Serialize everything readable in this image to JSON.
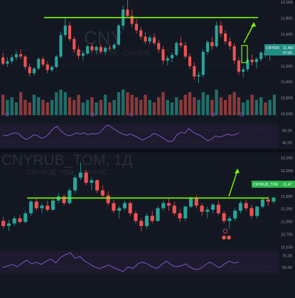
{
  "colors": {
    "background": "#131722",
    "separator": "#0b0e16",
    "grid": "#1c2130",
    "candle_up": "#26a69a",
    "candle_down": "#ef5350",
    "vol_up": "#1f6f68",
    "vol_down": "#8a3a3a",
    "level_line": "#7cff00",
    "rsi_line": "#7e57c2",
    "rsi_band": "#221d33",
    "watermark": "#2a2e39",
    "axis_text": "#9598a1",
    "badge_upper": "#1f8f83",
    "badge_lower": "#2bb24c"
  },
  "chart_data": [
    {
      "type": "candlestick",
      "symbol_watermark": "CNY",
      "symbol_subline": "CNY/RUB_TOM · CNY/РУБ",
      "yticks": [
        "12,000",
        "11,800",
        "11,600",
        "11,400",
        "11,200",
        "11,000",
        "10,800",
        "10,600"
      ],
      "ylim": [
        10.52,
        12.02
      ],
      "price_badge": {
        "label": "CNY000",
        "value": "11,460",
        "time": "07:05"
      },
      "level": 11.8,
      "candles": [
        [
          11.3,
          11.36,
          11.2,
          11.22
        ],
        [
          11.22,
          11.3,
          11.18,
          11.25
        ],
        [
          11.25,
          11.33,
          11.22,
          11.3
        ],
        [
          11.3,
          11.38,
          11.26,
          11.34
        ],
        [
          11.34,
          11.4,
          11.28,
          11.31
        ],
        [
          11.31,
          11.33,
          11.15,
          11.18
        ],
        [
          11.18,
          11.22,
          11.06,
          11.1
        ],
        [
          11.1,
          11.18,
          11.07,
          11.16
        ],
        [
          11.16,
          11.3,
          11.14,
          11.28
        ],
        [
          11.28,
          11.31,
          11.18,
          11.21
        ],
        [
          11.21,
          11.25,
          11.1,
          11.14
        ],
        [
          11.14,
          11.2,
          11.11,
          11.18
        ],
        [
          11.18,
          11.33,
          11.16,
          11.31
        ],
        [
          11.31,
          11.62,
          11.29,
          11.58
        ],
        [
          11.58,
          11.8,
          11.55,
          11.7
        ],
        [
          11.7,
          11.74,
          11.5,
          11.53
        ],
        [
          11.53,
          11.56,
          11.36,
          11.4
        ],
        [
          11.4,
          11.45,
          11.28,
          11.32
        ],
        [
          11.32,
          11.38,
          11.26,
          11.35
        ],
        [
          11.35,
          11.46,
          11.33,
          11.44
        ],
        [
          11.44,
          11.48,
          11.36,
          11.39
        ],
        [
          11.39,
          11.45,
          11.35,
          11.43
        ],
        [
          11.43,
          11.47,
          11.34,
          11.37
        ],
        [
          11.37,
          11.44,
          11.33,
          11.42
        ],
        [
          11.42,
          11.46,
          11.38,
          11.41
        ],
        [
          11.41,
          11.48,
          11.39,
          11.46
        ],
        [
          11.46,
          11.72,
          11.44,
          11.7
        ],
        [
          11.7,
          11.95,
          11.65,
          11.9
        ],
        [
          11.9,
          12.05,
          11.8,
          11.82
        ],
        [
          11.82,
          11.9,
          11.68,
          11.72
        ],
        [
          11.72,
          11.78,
          11.6,
          11.64
        ],
        [
          11.64,
          11.68,
          11.52,
          11.56
        ],
        [
          11.56,
          11.62,
          11.47,
          11.5
        ],
        [
          11.5,
          11.58,
          11.46,
          11.55
        ],
        [
          11.55,
          11.6,
          11.45,
          11.48
        ],
        [
          11.48,
          11.52,
          11.36,
          11.4
        ],
        [
          11.4,
          11.44,
          11.22,
          11.26
        ],
        [
          11.26,
          11.32,
          11.2,
          11.29
        ],
        [
          11.29,
          11.36,
          11.24,
          11.33
        ],
        [
          11.33,
          11.5,
          11.31,
          11.48
        ],
        [
          11.48,
          11.56,
          11.42,
          11.45
        ],
        [
          11.45,
          11.49,
          11.28,
          11.31
        ],
        [
          11.31,
          11.35,
          11.15,
          11.19
        ],
        [
          11.19,
          11.24,
          11.02,
          11.06
        ],
        [
          11.06,
          11.12,
          10.98,
          11.08
        ],
        [
          11.08,
          11.4,
          11.05,
          11.37
        ],
        [
          11.37,
          11.52,
          11.33,
          11.49
        ],
        [
          11.49,
          11.56,
          11.4,
          11.44
        ],
        [
          11.44,
          11.75,
          11.42,
          11.7
        ],
        [
          11.7,
          11.76,
          11.56,
          11.6
        ],
        [
          11.6,
          11.64,
          11.46,
          11.5
        ],
        [
          11.5,
          11.55,
          11.4,
          11.44
        ],
        [
          11.44,
          11.48,
          11.22,
          11.26
        ],
        [
          11.26,
          11.3,
          11.08,
          11.12
        ],
        [
          11.12,
          11.18,
          11.05,
          11.15
        ],
        [
          11.15,
          11.3,
          11.12,
          11.27
        ],
        [
          11.27,
          11.34,
          11.2,
          11.24
        ],
        [
          11.24,
          11.3,
          11.16,
          11.28
        ],
        [
          11.28,
          11.38,
          11.25,
          11.36
        ],
        [
          11.36,
          11.44,
          11.3,
          11.33
        ],
        [
          11.33,
          11.38,
          11.26,
          11.35
        ],
        [
          11.35,
          11.48,
          11.33,
          11.46
        ]
      ],
      "volumes": [
        0.8,
        0.6,
        0.7,
        0.5,
        0.9,
        0.6,
        0.5,
        0.8,
        0.7,
        0.6,
        0.5,
        0.6,
        0.9,
        1.0,
        0.9,
        0.7,
        0.6,
        0.8,
        0.5,
        0.6,
        0.7,
        0.5,
        0.6,
        0.8,
        0.5,
        0.6,
        0.9,
        1.0,
        0.9,
        0.8,
        0.7,
        0.6,
        0.8,
        0.6,
        0.5,
        0.7,
        0.9,
        0.6,
        0.5,
        0.7,
        0.6,
        0.8,
        0.9,
        0.7,
        0.6,
        0.9,
        0.8,
        0.6,
        1.0,
        0.7,
        0.6,
        0.8,
        0.9,
        0.7,
        0.5,
        0.6,
        0.8,
        0.6,
        0.7,
        0.5,
        0.6,
        0.8
      ],
      "rsi_ticks": [
        "60,00",
        "40,00"
      ],
      "rsi_range": [
        30,
        70
      ],
      "rsi": [
        52,
        50,
        53,
        55,
        54,
        48,
        44,
        47,
        52,
        50,
        46,
        48,
        54,
        62,
        66,
        58,
        53,
        50,
        52,
        55,
        53,
        55,
        52,
        54,
        53,
        55,
        62,
        68,
        65,
        60,
        56,
        53,
        51,
        53,
        50,
        47,
        43,
        46,
        49,
        54,
        52,
        48,
        44,
        40,
        42,
        52,
        56,
        54,
        62,
        57,
        53,
        51,
        46,
        42,
        45,
        50,
        48,
        50,
        53,
        51,
        52,
        55
      ]
    },
    {
      "type": "candlestick",
      "symbol_watermark": "CNYRUB_TOM, 1Д",
      "symbol_subline": "CNY/RUB_TOM · CNY/РУБ",
      "yticks": [
        "12,250",
        "12,000",
        "11,750",
        "11,500",
        "11,250",
        "11,000",
        "10,750",
        "10,500"
      ],
      "ylim": [
        10.45,
        12.35
      ],
      "price_badge": {
        "label": "CNYRUB_TOM",
        "value": "11,47"
      },
      "level": 11.45,
      "candles": [
        [
          11.0,
          11.08,
          10.85,
          10.9
        ],
        [
          10.9,
          11.02,
          10.8,
          10.95
        ],
        [
          10.95,
          11.1,
          10.9,
          11.05
        ],
        [
          11.05,
          11.12,
          10.95,
          10.98
        ],
        [
          10.98,
          11.2,
          10.95,
          11.15
        ],
        [
          11.15,
          11.42,
          11.1,
          11.38
        ],
        [
          11.38,
          11.45,
          11.2,
          11.25
        ],
        [
          11.25,
          11.35,
          11.15,
          11.3
        ],
        [
          11.3,
          11.4,
          11.18,
          11.22
        ],
        [
          11.22,
          11.45,
          11.2,
          11.4
        ],
        [
          11.4,
          11.55,
          11.35,
          11.48
        ],
        [
          11.48,
          11.52,
          11.3,
          11.35
        ],
        [
          11.35,
          11.65,
          11.32,
          11.6
        ],
        [
          11.6,
          11.9,
          11.55,
          11.85
        ],
        [
          11.85,
          12.15,
          11.8,
          11.95
        ],
        [
          11.95,
          12.0,
          11.7,
          11.75
        ],
        [
          11.75,
          11.85,
          11.6,
          11.8
        ],
        [
          11.8,
          11.82,
          11.55,
          11.6
        ],
        [
          11.6,
          11.7,
          11.45,
          11.5
        ],
        [
          11.5,
          11.58,
          11.3,
          11.35
        ],
        [
          11.35,
          11.42,
          11.15,
          11.2
        ],
        [
          11.2,
          11.3,
          11.05,
          11.25
        ],
        [
          11.25,
          11.4,
          11.2,
          11.35
        ],
        [
          11.35,
          11.38,
          11.1,
          11.15
        ],
        [
          11.15,
          11.2,
          10.95,
          11.0
        ],
        [
          11.0,
          11.05,
          10.8,
          10.9
        ],
        [
          10.9,
          11.15,
          10.85,
          11.1
        ],
        [
          11.1,
          11.2,
          10.95,
          11.0
        ],
        [
          11.0,
          11.3,
          10.98,
          11.25
        ],
        [
          11.25,
          11.4,
          11.2,
          11.35
        ],
        [
          11.35,
          11.45,
          11.2,
          11.3
        ],
        [
          11.3,
          11.38,
          11.1,
          11.15
        ],
        [
          11.15,
          11.22,
          10.98,
          11.05
        ],
        [
          11.05,
          11.3,
          11.0,
          11.28
        ],
        [
          11.28,
          11.48,
          11.25,
          11.44
        ],
        [
          11.44,
          11.5,
          11.25,
          11.3
        ],
        [
          11.3,
          11.35,
          11.1,
          11.18
        ],
        [
          11.18,
          11.28,
          11.05,
          11.22
        ],
        [
          11.22,
          11.35,
          11.15,
          11.32
        ],
        [
          11.32,
          11.4,
          11.12,
          11.15
        ],
        [
          11.15,
          11.2,
          10.95,
          11.0
        ],
        [
          11.0,
          11.1,
          10.85,
          11.05
        ],
        [
          11.05,
          11.25,
          11.0,
          11.2
        ],
        [
          11.2,
          11.4,
          11.15,
          11.35
        ],
        [
          11.35,
          11.42,
          11.2,
          11.25
        ],
        [
          11.25,
          11.32,
          11.05,
          11.1
        ],
        [
          11.1,
          11.3,
          11.05,
          11.28
        ],
        [
          11.28,
          11.45,
          11.25,
          11.42
        ],
        [
          11.42,
          11.48,
          11.3,
          11.38
        ],
        [
          11.38,
          11.47,
          11.33,
          11.46
        ]
      ],
      "rsi_ticks": [
        "75,00",
        "50,00"
      ],
      "rsi_range": [
        35,
        85
      ],
      "rsi": [
        48,
        52,
        55,
        50,
        58,
        64,
        56,
        60,
        55,
        62,
        66,
        58,
        70,
        76,
        80,
        68,
        72,
        62,
        56,
        50,
        46,
        50,
        54,
        48,
        44,
        40,
        50,
        46,
        56,
        60,
        56,
        50,
        46,
        55,
        62,
        54,
        50,
        52,
        56,
        48,
        44,
        46,
        54,
        60,
        54,
        48,
        56,
        62,
        58,
        60
      ]
    }
  ],
  "badges": [
    {
      "name": "dividend-badge-red",
      "text": "-"
    },
    {
      "name": "dividend-badge-red",
      "text": "-"
    }
  ]
}
